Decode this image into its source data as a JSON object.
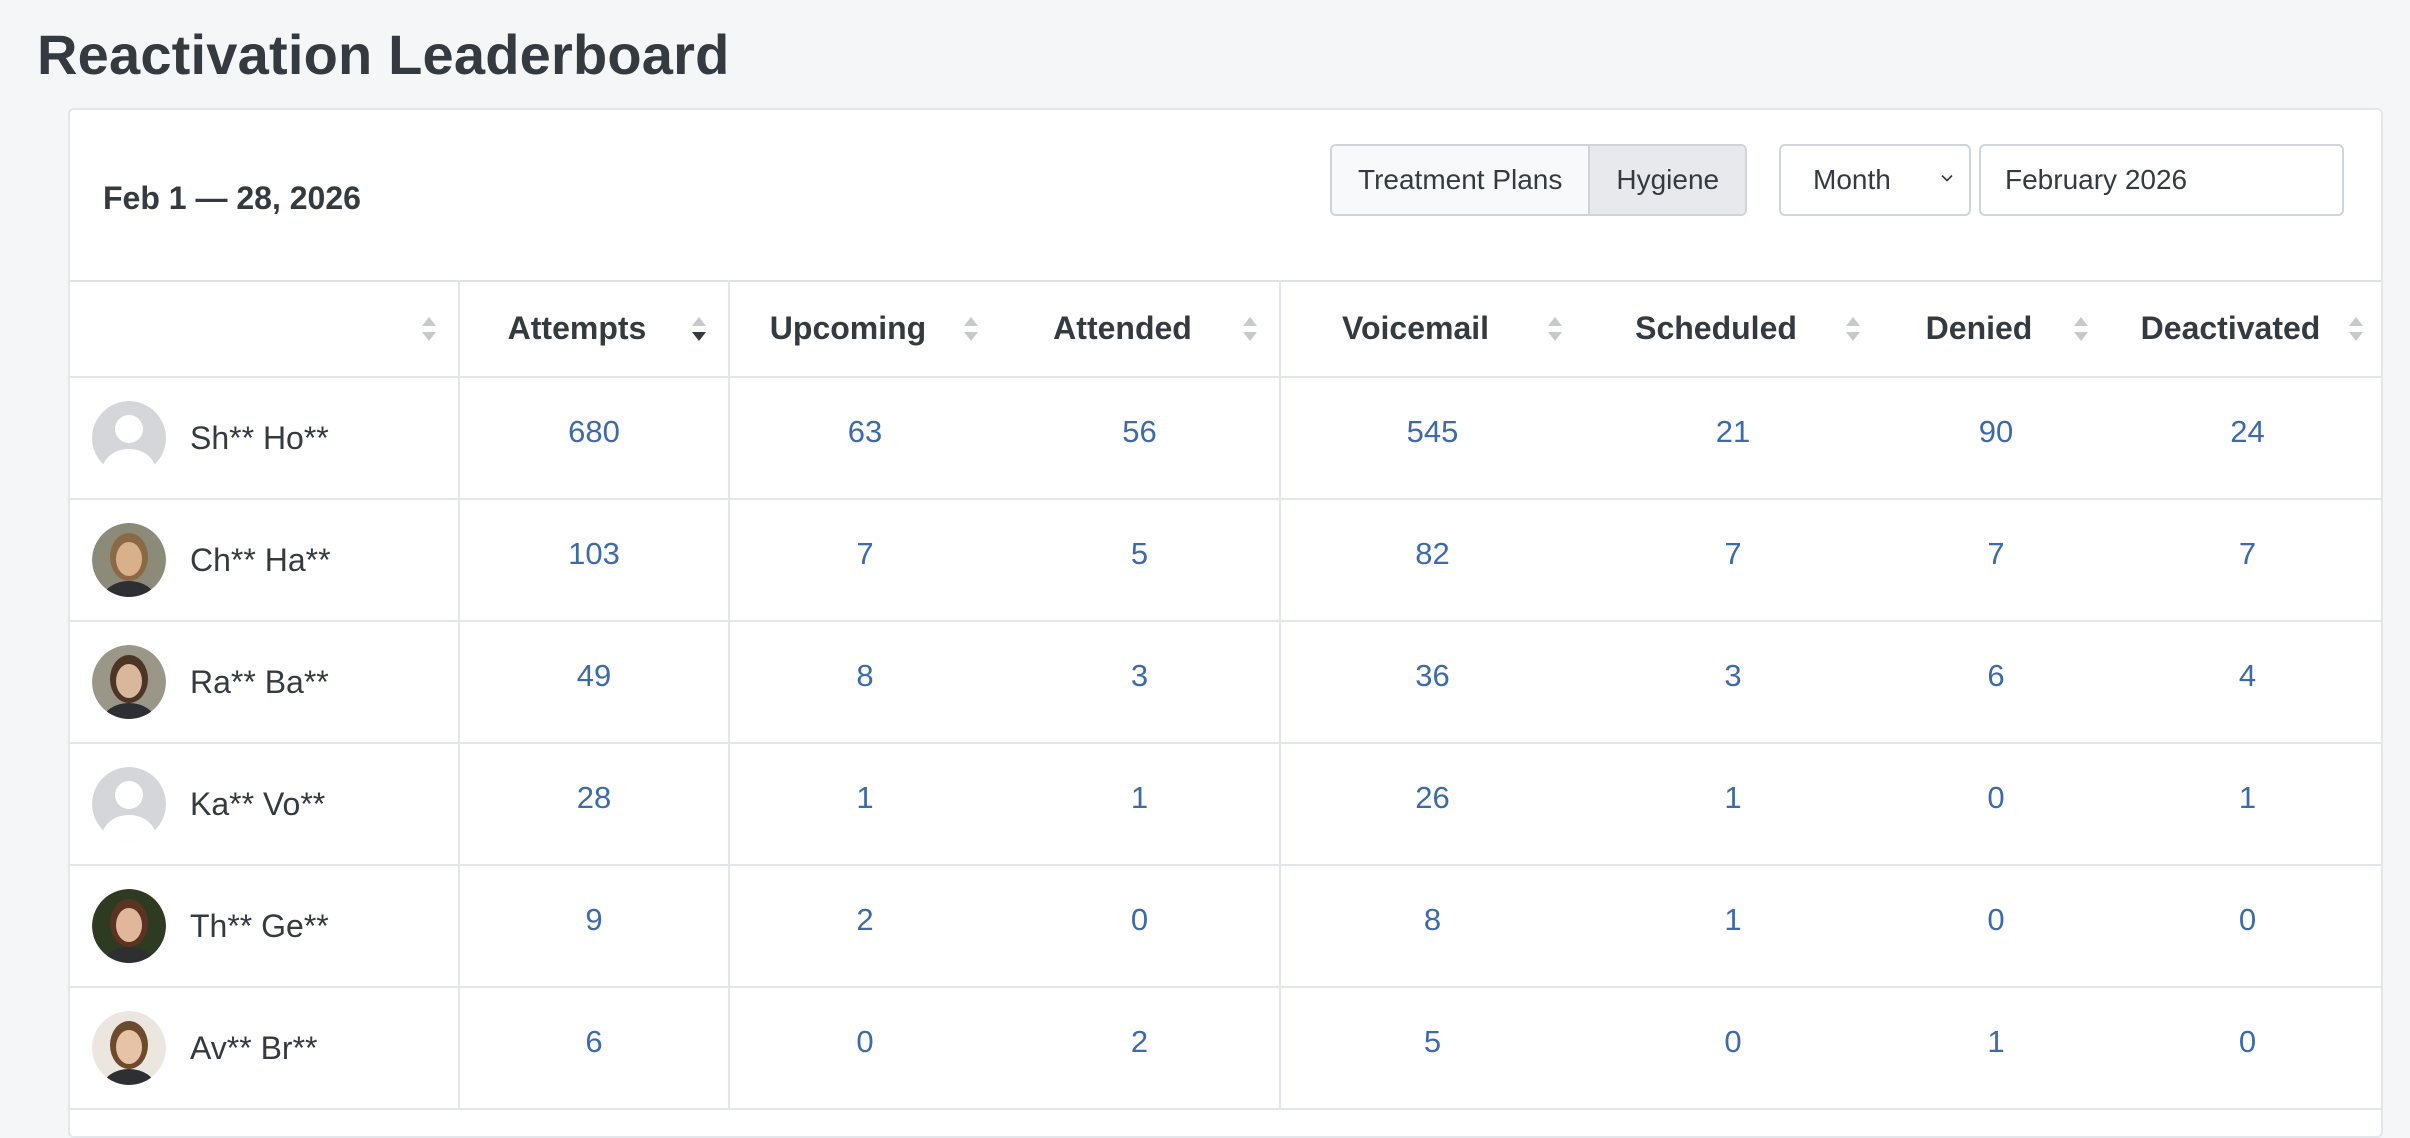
{
  "page": {
    "title": "Reactivation Leaderboard"
  },
  "header": {
    "date_range": "Feb 1 — 28, 2026",
    "segments": [
      {
        "label": "Treatment Plans",
        "active": false
      },
      {
        "label": "Hygiene",
        "active": true
      }
    ],
    "period_select": {
      "value": "Month"
    },
    "month_input": {
      "value": "February 2026"
    }
  },
  "table": {
    "columns": [
      "Attempts",
      "Upcoming",
      "Attended",
      "Voicemail",
      "Scheduled",
      "Denied",
      "Deactivated"
    ],
    "sorted_column": "Attempts",
    "sort_direction": "descending",
    "rows": [
      {
        "name": "Sh** Ho**",
        "avatar": "placeholder",
        "values": [
          "680",
          "63",
          "56",
          "545",
          "21",
          "90",
          "24"
        ]
      },
      {
        "name": "Ch** Ha**",
        "avatar": "photo",
        "values": [
          "103",
          "7",
          "5",
          "82",
          "7",
          "7",
          "7"
        ]
      },
      {
        "name": "Ra** Ba**",
        "avatar": "photo",
        "values": [
          "49",
          "8",
          "3",
          "36",
          "3",
          "6",
          "4"
        ]
      },
      {
        "name": "Ka** Vo**",
        "avatar": "placeholder",
        "values": [
          "28",
          "1",
          "1",
          "26",
          "1",
          "0",
          "1"
        ]
      },
      {
        "name": "Th** Ge**",
        "avatar": "photo",
        "values": [
          "9",
          "2",
          "0",
          "8",
          "1",
          "0",
          "0"
        ]
      },
      {
        "name": "Av** Br**",
        "avatar": "photo",
        "values": [
          "6",
          "0",
          "2",
          "5",
          "0",
          "1",
          "0"
        ]
      }
    ]
  },
  "colors": {
    "link_number": "#3d6aa9",
    "page_bg": "#f5f6f8",
    "border": "#e3e6ea"
  }
}
